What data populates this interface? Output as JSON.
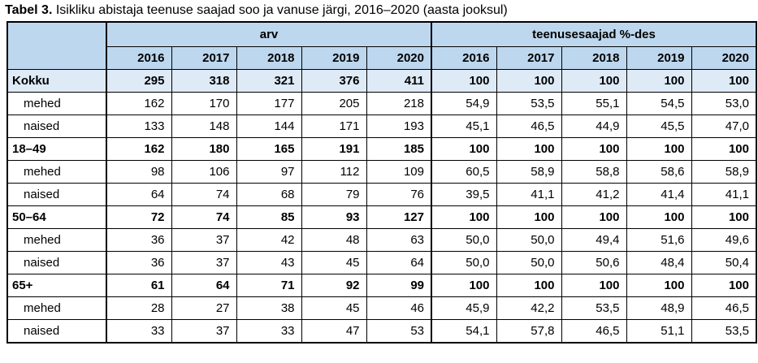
{
  "title": {
    "label": "Tabel 3.",
    "text": " Isikliku abistaja teenuse saajad soo ja vanuse järgi, 2016–2020 (aasta jooksul)"
  },
  "table": {
    "group_headers": [
      "arv",
      "teenusesaajad %-des"
    ],
    "years": [
      "2016",
      "2017",
      "2018",
      "2019",
      "2020"
    ],
    "rows": [
      {
        "label": "Kokku",
        "bold": true,
        "indent": false,
        "total": true,
        "arv": [
          "295",
          "318",
          "321",
          "376",
          "411"
        ],
        "pct": [
          "100",
          "100",
          "100",
          "100",
          "100"
        ]
      },
      {
        "label": "mehed",
        "bold": false,
        "indent": true,
        "total": false,
        "arv": [
          "162",
          "170",
          "177",
          "205",
          "218"
        ],
        "pct": [
          "54,9",
          "53,5",
          "55,1",
          "54,5",
          "53,0"
        ]
      },
      {
        "label": "naised",
        "bold": false,
        "indent": true,
        "total": false,
        "arv": [
          "133",
          "148",
          "144",
          "171",
          "193"
        ],
        "pct": [
          "45,1",
          "46,5",
          "44,9",
          "45,5",
          "47,0"
        ]
      },
      {
        "label": "18–49",
        "bold": true,
        "indent": false,
        "total": false,
        "arv": [
          "162",
          "180",
          "165",
          "191",
          "185"
        ],
        "pct": [
          "100",
          "100",
          "100",
          "100",
          "100"
        ]
      },
      {
        "label": "mehed",
        "bold": false,
        "indent": true,
        "total": false,
        "arv": [
          "98",
          "106",
          "97",
          "112",
          "109"
        ],
        "pct": [
          "60,5",
          "58,9",
          "58,8",
          "58,6",
          "58,9"
        ]
      },
      {
        "label": "naised",
        "bold": false,
        "indent": true,
        "total": false,
        "arv": [
          "64",
          "74",
          "68",
          "79",
          "76"
        ],
        "pct": [
          "39,5",
          "41,1",
          "41,2",
          "41,4",
          "41,1"
        ]
      },
      {
        "label": "50–64",
        "bold": true,
        "indent": false,
        "total": false,
        "arv": [
          "72",
          "74",
          "85",
          "93",
          "127"
        ],
        "pct": [
          "100",
          "100",
          "100",
          "100",
          "100"
        ]
      },
      {
        "label": "mehed",
        "bold": false,
        "indent": true,
        "total": false,
        "arv": [
          "36",
          "37",
          "42",
          "48",
          "63"
        ],
        "pct": [
          "50,0",
          "50,0",
          "49,4",
          "51,6",
          "49,6"
        ]
      },
      {
        "label": "naised",
        "bold": false,
        "indent": true,
        "total": false,
        "arv": [
          "36",
          "37",
          "43",
          "45",
          "64"
        ],
        "pct": [
          "50,0",
          "50,0",
          "50,6",
          "48,4",
          "50,4"
        ]
      },
      {
        "label": "65+",
        "bold": true,
        "indent": false,
        "total": false,
        "arv": [
          "61",
          "64",
          "71",
          "92",
          "99"
        ],
        "pct": [
          "100",
          "100",
          "100",
          "100",
          "100"
        ]
      },
      {
        "label": "mehed",
        "bold": false,
        "indent": true,
        "total": false,
        "arv": [
          "28",
          "27",
          "38",
          "45",
          "46"
        ],
        "pct": [
          "45,9",
          "42,2",
          "53,5",
          "48,9",
          "46,5"
        ]
      },
      {
        "label": "naised",
        "bold": false,
        "indent": true,
        "total": false,
        "arv": [
          "33",
          "37",
          "33",
          "47",
          "53"
        ],
        "pct": [
          "54,1",
          "57,8",
          "46,5",
          "51,1",
          "53,5"
        ]
      }
    ]
  },
  "colors": {
    "header_bg": "#bdd7ee",
    "total_row_bg": "#deeaf6",
    "border": "#000000"
  }
}
